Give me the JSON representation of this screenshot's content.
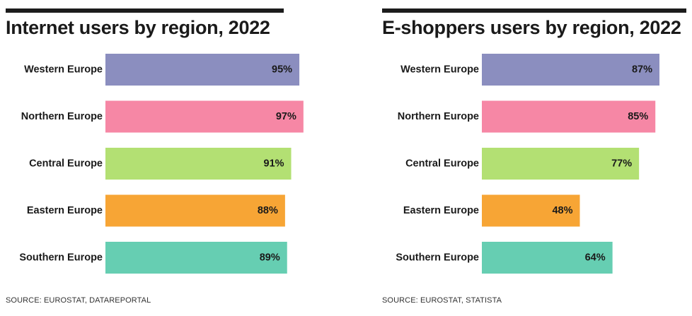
{
  "colors": {
    "western": "#8b8ebf",
    "northern": "#f687a5",
    "central": "#b3e073",
    "eastern": "#f7a535",
    "southern": "#66ceb2",
    "bar_top": "#1c1c1c"
  },
  "chart_data": [
    {
      "type": "bar",
      "orientation": "horizontal",
      "title": "Internet users by region, 2022",
      "categories": [
        "Western Europe",
        "Northern Europe",
        "Central Europe",
        "Eastern Europe",
        "Southern Europe"
      ],
      "values": [
        95,
        97,
        91,
        88,
        89
      ],
      "value_labels": [
        "95%",
        "97%",
        "91%",
        "88%",
        "89%"
      ],
      "xlim": [
        0,
        100
      ],
      "xlabel": "",
      "ylabel": "",
      "grid": false,
      "source": "SOURCE: EUROSTAT, DATAREPORTAL"
    },
    {
      "type": "bar",
      "orientation": "horizontal",
      "title": "E-shoppers users by region, 2022",
      "categories": [
        "Western Europe",
        "Northern Europe",
        "Central Europe",
        "Eastern Europe",
        "Southern Europe"
      ],
      "values": [
        87,
        85,
        77,
        48,
        64
      ],
      "value_labels": [
        "87%",
        "85%",
        "77%",
        "48%",
        "64%"
      ],
      "xlim": [
        0,
        100
      ],
      "xlabel": "",
      "ylabel": "",
      "grid": false,
      "source": "SOURCE: EUROSTAT, STATISTA"
    }
  ]
}
